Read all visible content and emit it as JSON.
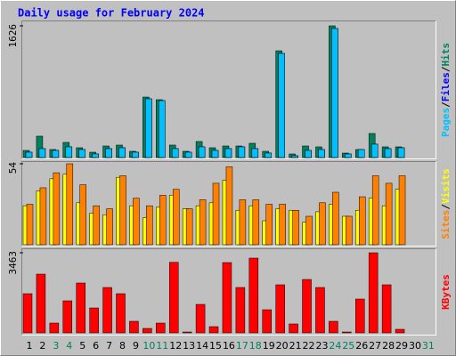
{
  "chart_data": [
    {
      "type": "bar",
      "title": "Daily usage for February 2024",
      "legend_separator": "/",
      "ylim": [
        0,
        1626
      ],
      "yticks": [
        1626
      ],
      "series": [
        {
          "name": "Hits",
          "color": "#00805c",
          "values": [
            88,
            264,
            99,
            187,
            121,
            66,
            143,
            154,
            77,
            747,
            714,
            154,
            77,
            198,
            121,
            143,
            143,
            176,
            77,
            1318,
            44,
            143,
            132,
            1626,
            55,
            99,
            297,
            132,
            132,
            null,
            null
          ]
        },
        {
          "name": "Files",
          "color": "#0000ff",
          "values": [
            66,
            110,
            88,
            132,
            99,
            44,
            110,
            121,
            66,
            725,
            703,
            110,
            66,
            132,
            88,
            110,
            132,
            110,
            55,
            1285,
            22,
            88,
            99,
            1593,
            44,
            99,
            165,
            110,
            121,
            null,
            null
          ]
        },
        {
          "name": "Pages",
          "color": "#00c0ff",
          "values": [
            66,
            110,
            88,
            132,
            99,
            44,
            110,
            121,
            66,
            725,
            703,
            110,
            66,
            132,
            88,
            110,
            132,
            110,
            55,
            1285,
            22,
            88,
            99,
            1593,
            44,
            99,
            165,
            110,
            121,
            null,
            null
          ]
        }
      ]
    },
    {
      "type": "bar",
      "ylim": [
        0,
        54
      ],
      "yticks": [
        54
      ],
      "series": [
        {
          "name": "Visits",
          "color": "#ffff00",
          "values": [
            26,
            36,
            44,
            47,
            28,
            21,
            20,
            45,
            26,
            18,
            25,
            33,
            24,
            26,
            28,
            43,
            23,
            26,
            16,
            24,
            23,
            15,
            22,
            27,
            19,
            23,
            31,
            26,
            37,
            null,
            null
          ]
        },
        {
          "name": "Sites",
          "color": "#ff8000",
          "values": [
            27,
            38,
            48,
            54,
            40,
            26,
            24,
            46,
            31,
            26,
            33,
            37,
            24,
            30,
            41,
            52,
            30,
            30,
            27,
            27,
            23,
            19,
            28,
            35,
            19,
            32,
            46,
            41,
            46,
            null,
            null
          ]
        }
      ]
    },
    {
      "type": "bar",
      "ylim": [
        0,
        3463
      ],
      "yticks": [
        3463
      ],
      "categories": [
        "1",
        "2",
        "3",
        "4",
        "5",
        "6",
        "7",
        "8",
        "9",
        "10",
        "11",
        "12",
        "13",
        "14",
        "15",
        "16",
        "17",
        "18",
        "19",
        "20",
        "21",
        "22",
        "23",
        "24",
        "25",
        "26",
        "27",
        "28",
        "29",
        "30",
        "31"
      ],
      "category_colors": [
        "#000000",
        "#000000",
        "#00805c",
        "#00805c",
        "#000000",
        "#000000",
        "#000000",
        "#000000",
        "#000000",
        "#00805c",
        "#00805c",
        "#000000",
        "#000000",
        "#000000",
        "#000000",
        "#000000",
        "#00805c",
        "#00805c",
        "#000000",
        "#000000",
        "#000000",
        "#000000",
        "#000000",
        "#00805c",
        "#00805c",
        "#000000",
        "#000000",
        "#000000",
        "#000000",
        "#000000",
        "#00805c"
      ],
      "series": [
        {
          "name": "KBytes",
          "color": "#ff0000",
          "values": [
            1693,
            2539,
            423,
            1385,
            2155,
            1077,
            1962,
            1693,
            500,
            192,
            423,
            3050,
            38,
            1231,
            269,
            3040,
            1962,
            3232,
            1000,
            2078,
            385,
            2309,
            1962,
            500,
            38,
            1462,
            3463,
            2078,
            154,
            null,
            null
          ]
        }
      ]
    }
  ]
}
